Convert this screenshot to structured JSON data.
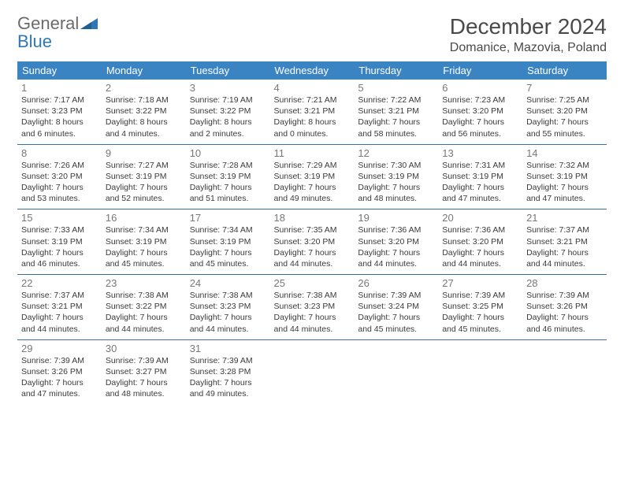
{
  "logo": {
    "word1": "General",
    "word2": "Blue"
  },
  "title": "December 2024",
  "location": "Domanice, Mazovia, Poland",
  "colors": {
    "header_bg": "#3b84c4",
    "header_fg": "#ffffff",
    "row_divider": "#3b6fa0",
    "daynum": "#787878",
    "text": "#3a3a3a",
    "logo_gray": "#6b6b6b",
    "logo_blue": "#2f77b6"
  },
  "weekdays": [
    "Sunday",
    "Monday",
    "Tuesday",
    "Wednesday",
    "Thursday",
    "Friday",
    "Saturday"
  ],
  "weeks": [
    [
      {
        "n": "1",
        "sr": "Sunrise: 7:17 AM",
        "ss": "Sunset: 3:23 PM",
        "d1": "Daylight: 8 hours",
        "d2": "and 6 minutes."
      },
      {
        "n": "2",
        "sr": "Sunrise: 7:18 AM",
        "ss": "Sunset: 3:22 PM",
        "d1": "Daylight: 8 hours",
        "d2": "and 4 minutes."
      },
      {
        "n": "3",
        "sr": "Sunrise: 7:19 AM",
        "ss": "Sunset: 3:22 PM",
        "d1": "Daylight: 8 hours",
        "d2": "and 2 minutes."
      },
      {
        "n": "4",
        "sr": "Sunrise: 7:21 AM",
        "ss": "Sunset: 3:21 PM",
        "d1": "Daylight: 8 hours",
        "d2": "and 0 minutes."
      },
      {
        "n": "5",
        "sr": "Sunrise: 7:22 AM",
        "ss": "Sunset: 3:21 PM",
        "d1": "Daylight: 7 hours",
        "d2": "and 58 minutes."
      },
      {
        "n": "6",
        "sr": "Sunrise: 7:23 AM",
        "ss": "Sunset: 3:20 PM",
        "d1": "Daylight: 7 hours",
        "d2": "and 56 minutes."
      },
      {
        "n": "7",
        "sr": "Sunrise: 7:25 AM",
        "ss": "Sunset: 3:20 PM",
        "d1": "Daylight: 7 hours",
        "d2": "and 55 minutes."
      }
    ],
    [
      {
        "n": "8",
        "sr": "Sunrise: 7:26 AM",
        "ss": "Sunset: 3:20 PM",
        "d1": "Daylight: 7 hours",
        "d2": "and 53 minutes."
      },
      {
        "n": "9",
        "sr": "Sunrise: 7:27 AM",
        "ss": "Sunset: 3:19 PM",
        "d1": "Daylight: 7 hours",
        "d2": "and 52 minutes."
      },
      {
        "n": "10",
        "sr": "Sunrise: 7:28 AM",
        "ss": "Sunset: 3:19 PM",
        "d1": "Daylight: 7 hours",
        "d2": "and 51 minutes."
      },
      {
        "n": "11",
        "sr": "Sunrise: 7:29 AM",
        "ss": "Sunset: 3:19 PM",
        "d1": "Daylight: 7 hours",
        "d2": "and 49 minutes."
      },
      {
        "n": "12",
        "sr": "Sunrise: 7:30 AM",
        "ss": "Sunset: 3:19 PM",
        "d1": "Daylight: 7 hours",
        "d2": "and 48 minutes."
      },
      {
        "n": "13",
        "sr": "Sunrise: 7:31 AM",
        "ss": "Sunset: 3:19 PM",
        "d1": "Daylight: 7 hours",
        "d2": "and 47 minutes."
      },
      {
        "n": "14",
        "sr": "Sunrise: 7:32 AM",
        "ss": "Sunset: 3:19 PM",
        "d1": "Daylight: 7 hours",
        "d2": "and 47 minutes."
      }
    ],
    [
      {
        "n": "15",
        "sr": "Sunrise: 7:33 AM",
        "ss": "Sunset: 3:19 PM",
        "d1": "Daylight: 7 hours",
        "d2": "and 46 minutes."
      },
      {
        "n": "16",
        "sr": "Sunrise: 7:34 AM",
        "ss": "Sunset: 3:19 PM",
        "d1": "Daylight: 7 hours",
        "d2": "and 45 minutes."
      },
      {
        "n": "17",
        "sr": "Sunrise: 7:34 AM",
        "ss": "Sunset: 3:19 PM",
        "d1": "Daylight: 7 hours",
        "d2": "and 45 minutes."
      },
      {
        "n": "18",
        "sr": "Sunrise: 7:35 AM",
        "ss": "Sunset: 3:20 PM",
        "d1": "Daylight: 7 hours",
        "d2": "and 44 minutes."
      },
      {
        "n": "19",
        "sr": "Sunrise: 7:36 AM",
        "ss": "Sunset: 3:20 PM",
        "d1": "Daylight: 7 hours",
        "d2": "and 44 minutes."
      },
      {
        "n": "20",
        "sr": "Sunrise: 7:36 AM",
        "ss": "Sunset: 3:20 PM",
        "d1": "Daylight: 7 hours",
        "d2": "and 44 minutes."
      },
      {
        "n": "21",
        "sr": "Sunrise: 7:37 AM",
        "ss": "Sunset: 3:21 PM",
        "d1": "Daylight: 7 hours",
        "d2": "and 44 minutes."
      }
    ],
    [
      {
        "n": "22",
        "sr": "Sunrise: 7:37 AM",
        "ss": "Sunset: 3:21 PM",
        "d1": "Daylight: 7 hours",
        "d2": "and 44 minutes."
      },
      {
        "n": "23",
        "sr": "Sunrise: 7:38 AM",
        "ss": "Sunset: 3:22 PM",
        "d1": "Daylight: 7 hours",
        "d2": "and 44 minutes."
      },
      {
        "n": "24",
        "sr": "Sunrise: 7:38 AM",
        "ss": "Sunset: 3:23 PM",
        "d1": "Daylight: 7 hours",
        "d2": "and 44 minutes."
      },
      {
        "n": "25",
        "sr": "Sunrise: 7:38 AM",
        "ss": "Sunset: 3:23 PM",
        "d1": "Daylight: 7 hours",
        "d2": "and 44 minutes."
      },
      {
        "n": "26",
        "sr": "Sunrise: 7:39 AM",
        "ss": "Sunset: 3:24 PM",
        "d1": "Daylight: 7 hours",
        "d2": "and 45 minutes."
      },
      {
        "n": "27",
        "sr": "Sunrise: 7:39 AM",
        "ss": "Sunset: 3:25 PM",
        "d1": "Daylight: 7 hours",
        "d2": "and 45 minutes."
      },
      {
        "n": "28",
        "sr": "Sunrise: 7:39 AM",
        "ss": "Sunset: 3:26 PM",
        "d1": "Daylight: 7 hours",
        "d2": "and 46 minutes."
      }
    ],
    [
      {
        "n": "29",
        "sr": "Sunrise: 7:39 AM",
        "ss": "Sunset: 3:26 PM",
        "d1": "Daylight: 7 hours",
        "d2": "and 47 minutes."
      },
      {
        "n": "30",
        "sr": "Sunrise: 7:39 AM",
        "ss": "Sunset: 3:27 PM",
        "d1": "Daylight: 7 hours",
        "d2": "and 48 minutes."
      },
      {
        "n": "31",
        "sr": "Sunrise: 7:39 AM",
        "ss": "Sunset: 3:28 PM",
        "d1": "Daylight: 7 hours",
        "d2": "and 49 minutes."
      },
      null,
      null,
      null,
      null
    ]
  ]
}
